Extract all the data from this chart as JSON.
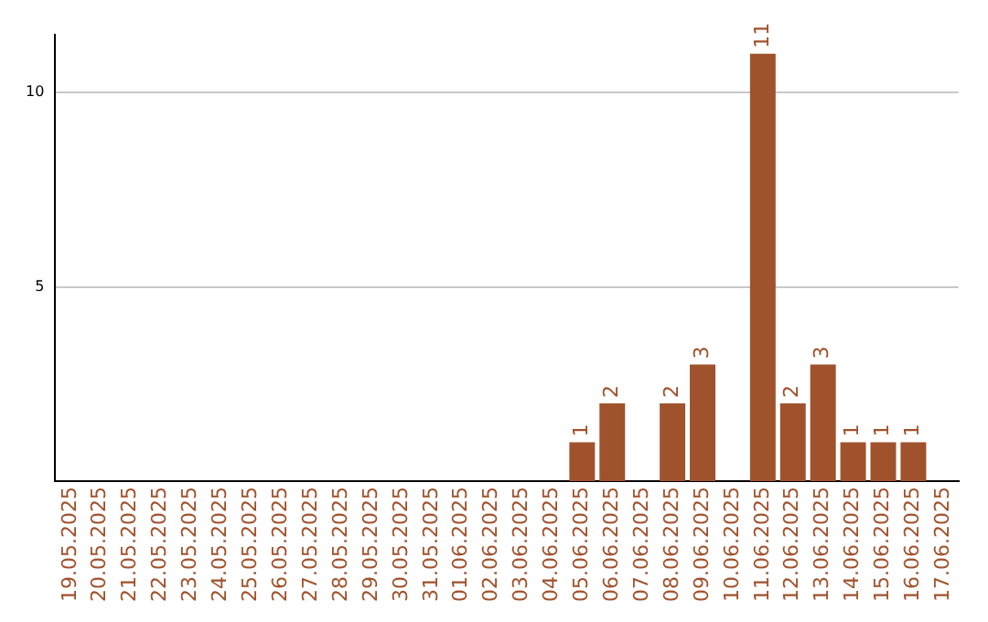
{
  "chart_data": {
    "type": "bar",
    "categories": [
      "19.05.2025",
      "20.05.2025",
      "21.05.2025",
      "22.05.2025",
      "23.05.2025",
      "24.05.2025",
      "25.05.2025",
      "26.05.2025",
      "27.05.2025",
      "28.05.2025",
      "29.05.2025",
      "30.05.2025",
      "31.05.2025",
      "01.06.2025",
      "02.06.2025",
      "03.06.2025",
      "04.06.2025",
      "05.06.2025",
      "06.06.2025",
      "07.06.2025",
      "08.06.2025",
      "09.06.2025",
      "10.06.2025",
      "11.06.2025",
      "12.06.2025",
      "13.06.2025",
      "14.06.2025",
      "15.06.2025",
      "16.06.2025",
      "17.06.2025"
    ],
    "values": [
      0,
      0,
      0,
      0,
      0,
      0,
      0,
      0,
      0,
      0,
      0,
      0,
      0,
      0,
      0,
      0,
      0,
      1,
      2,
      0,
      2,
      3,
      0,
      11,
      2,
      3,
      1,
      1,
      1,
      0
    ],
    "value_labels": [
      null,
      null,
      null,
      null,
      null,
      null,
      null,
      null,
      null,
      null,
      null,
      null,
      null,
      null,
      null,
      null,
      null,
      "1",
      "2",
      null,
      "2",
      "3",
      null,
      "11",
      "2",
      "3",
      "1",
      "1",
      "1",
      null
    ],
    "color": "#a0522d",
    "ylim": [
      0,
      11.5
    ],
    "yticks": [
      5,
      10
    ],
    "grid": "y",
    "legend": false
  }
}
